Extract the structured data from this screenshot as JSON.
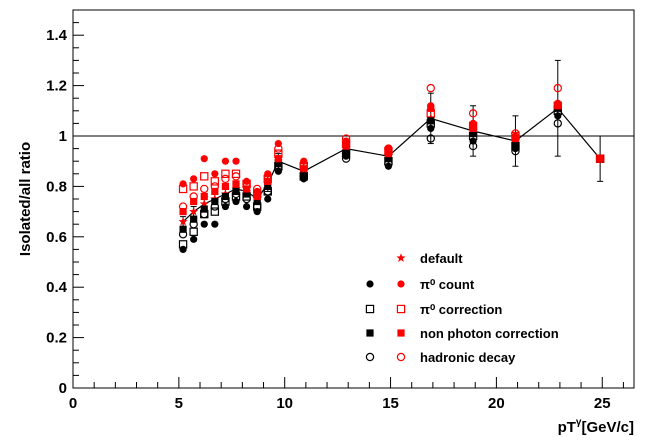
{
  "chart_data": {
    "type": "scatter",
    "xlabel": "pT",
    "xlabel_sup": "γ",
    "xlabel_unit": "[GeV/c]",
    "ylabel": "Isolated/all ratio",
    "xlim": [
      0,
      26.5
    ],
    "ylim": [
      0,
      1.5
    ],
    "x_ticks": [
      0,
      5,
      10,
      15,
      20,
      25
    ],
    "x_tick_labels": [
      "0",
      "5",
      "10",
      "15",
      "20",
      "25"
    ],
    "y_ticks": [
      0,
      0.2,
      0.4,
      0.6,
      0.8,
      1,
      1.2,
      1.4
    ],
    "y_tick_labels": [
      "0",
      "0.2",
      "0.4",
      "0.6",
      "0.8",
      "1",
      "1.2",
      "1.4"
    ],
    "reference_line": 1,
    "grid": false,
    "legend_position": "center-right",
    "legend": [
      {
        "label": "default",
        "black_marker": "",
        "red_marker": "star"
      },
      {
        "label": "π⁰ count",
        "black_marker": "filled-circle",
        "red_marker": "filled-circle"
      },
      {
        "label": "π⁰ correction",
        "black_marker": "open-square",
        "red_marker": "open-square"
      },
      {
        "label": "non photon correction",
        "black_marker": "filled-square",
        "red_marker": "filled-square"
      },
      {
        "label": "hadronic decay",
        "black_marker": "open-circle",
        "red_marker": "open-circle"
      }
    ],
    "colors": {
      "black": "#000000",
      "red": "#ff0000"
    },
    "x": [
      5.2,
      5.7,
      6.2,
      6.7,
      7.2,
      7.7,
      8.2,
      8.7,
      9.2,
      9.7,
      10.9,
      12.9,
      14.9,
      16.9,
      18.9,
      20.9,
      22.9,
      24.9
    ],
    "series": [
      {
        "marker": "star",
        "color": "red",
        "connected": true,
        "values": [
          0.66,
          0.7,
          0.73,
          0.75,
          0.77,
          0.79,
          0.78,
          0.75,
          0.81,
          0.9,
          0.86,
          0.95,
          0.92,
          1.07,
          1.02,
          0.98,
          1.11,
          0.91
        ],
        "errors": [
          0.02,
          0.02,
          0.02,
          0.02,
          0.02,
          0.02,
          0.02,
          0.02,
          0.03,
          0.03,
          0.03,
          0.03,
          0.04,
          0.1,
          0.1,
          0.1,
          0.19,
          0.09
        ]
      },
      {
        "marker": "filled-circle",
        "color": "black",
        "values": [
          0.55,
          0.59,
          0.65,
          0.65,
          0.72,
          0.74,
          0.72,
          0.7,
          0.75,
          0.86,
          0.83,
          0.92,
          0.88,
          1.03,
          0.98,
          0.95,
          1.08,
          0.91
        ]
      },
      {
        "marker": "filled-circle",
        "color": "red",
        "values": [
          0.81,
          0.83,
          0.91,
          0.85,
          0.9,
          0.9,
          0.82,
          0.78,
          0.85,
          0.97,
          0.9,
          0.98,
          0.95,
          1.12,
          1.05,
          1.0,
          1.13,
          0.91
        ]
      },
      {
        "marker": "open-square",
        "color": "black",
        "values": [
          0.57,
          0.62,
          0.69,
          0.7,
          0.74,
          0.76,
          0.76,
          0.72,
          0.78,
          0.88,
          0.84,
          0.93,
          0.9,
          1.05,
          1.0,
          0.96,
          1.1,
          0.91
        ]
      },
      {
        "marker": "open-square",
        "color": "red",
        "values": [
          0.79,
          0.8,
          0.84,
          0.82,
          0.85,
          0.85,
          0.81,
          0.77,
          0.83,
          0.93,
          0.88,
          0.97,
          0.94,
          1.09,
          1.04,
          1.0,
          1.12,
          0.91
        ]
      },
      {
        "marker": "filled-square",
        "color": "black",
        "values": [
          0.63,
          0.67,
          0.71,
          0.74,
          0.76,
          0.78,
          0.77,
          0.74,
          0.8,
          0.89,
          0.85,
          0.94,
          0.91,
          1.06,
          1.01,
          0.97,
          1.11,
          0.91
        ]
      },
      {
        "marker": "filled-square",
        "color": "red",
        "values": [
          0.7,
          0.74,
          0.76,
          0.78,
          0.8,
          0.81,
          0.79,
          0.76,
          0.82,
          0.91,
          0.87,
          0.96,
          0.93,
          1.11,
          1.03,
          0.99,
          1.12,
          0.91
        ]
      },
      {
        "marker": "open-circle",
        "color": "black",
        "values": [
          0.61,
          0.65,
          0.69,
          0.72,
          0.75,
          0.77,
          0.75,
          0.72,
          0.78,
          0.87,
          0.84,
          0.91,
          0.89,
          0.99,
          0.96,
          0.94,
          1.05,
          0.91
        ]
      },
      {
        "marker": "open-circle",
        "color": "red",
        "values": [
          0.72,
          0.76,
          0.79,
          0.8,
          0.83,
          0.84,
          0.8,
          0.79,
          0.84,
          0.95,
          0.89,
          0.99,
          0.95,
          1.19,
          1.09,
          1.01,
          1.19,
          0.91
        ]
      }
    ]
  }
}
